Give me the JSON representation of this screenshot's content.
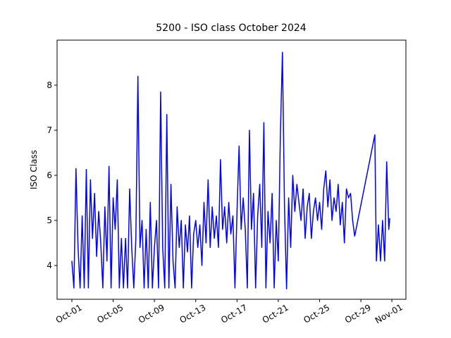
{
  "chart_data": {
    "type": "line",
    "title": "5200 - ISO class October 2024",
    "y_label": "ISO Class",
    "x": [
      1.0,
      1.2,
      1.4,
      1.6,
      1.8,
      2.0,
      2.2,
      2.4,
      2.6,
      2.8,
      3.0,
      3.2,
      3.4,
      3.6,
      3.8,
      4.0,
      4.2,
      4.4,
      4.6,
      4.8,
      5.0,
      5.2,
      5.4,
      5.6,
      5.8,
      6.0,
      6.2,
      6.4,
      6.6,
      6.8,
      7.0,
      7.2,
      7.4,
      7.6,
      7.8,
      8.0,
      8.2,
      8.4,
      8.6,
      8.8,
      9.0,
      9.2,
      9.4,
      9.6,
      9.8,
      10.0,
      10.2,
      10.4,
      10.6,
      10.8,
      11.0,
      11.2,
      11.4,
      11.6,
      11.8,
      12.0,
      12.2,
      12.4,
      12.6,
      12.8,
      13.0,
      13.2,
      13.4,
      13.6,
      13.8,
      14.0,
      14.2,
      14.4,
      14.6,
      14.8,
      15.0,
      15.2,
      15.4,
      15.6,
      15.8,
      16.0,
      16.2,
      16.4,
      16.6,
      16.8,
      17.0,
      17.2,
      17.4,
      17.6,
      17.8,
      18.0,
      18.2,
      18.4,
      18.6,
      18.8,
      19.0,
      19.2,
      19.4,
      19.6,
      19.8,
      20.0,
      20.2,
      20.4,
      20.6,
      20.8,
      21.0,
      21.2,
      21.4,
      21.6,
      21.8,
      22.0,
      22.2,
      22.4,
      22.6,
      22.8,
      23.0,
      23.2,
      23.4,
      23.6,
      23.8,
      24.0,
      24.2,
      24.4,
      24.6,
      24.8,
      25.0,
      25.2,
      25.4,
      25.6,
      25.8,
      26.0,
      26.2,
      26.4,
      26.6,
      26.8,
      27.0,
      27.2,
      27.4,
      27.6,
      27.8,
      28.0,
      28.2,
      28.4,
      30.35,
      30.5,
      30.7,
      30.9,
      31.1,
      31.3,
      31.5,
      31.7,
      31.8
    ],
    "series": [
      {
        "color": "#0000ff",
        "values": [
          4.1,
          3.5,
          6.15,
          4.4,
          3.5,
          5.1,
          3.5,
          6.13,
          3.5,
          5.9,
          4.6,
          5.6,
          4.2,
          5.2,
          4.5,
          3.5,
          5.3,
          4.1,
          6.2,
          3.5,
          5.5,
          4.8,
          5.9,
          3.5,
          4.6,
          3.5,
          4.6,
          3.5,
          5.7,
          4.4,
          3.5,
          4.6,
          8.2,
          4.4,
          5.0,
          3.5,
          4.8,
          3.5,
          5.4,
          3.5,
          4.4,
          5.0,
          3.5,
          7.85,
          4.4,
          3.5,
          7.35,
          3.5,
          5.8,
          4.1,
          3.5,
          5.3,
          4.4,
          5.0,
          3.5,
          4.9,
          4.3,
          5.1,
          3.5,
          4.7,
          5.0,
          4.4,
          4.9,
          4.0,
          5.4,
          4.5,
          5.9,
          4.4,
          5.3,
          4.6,
          5.1,
          4.4,
          6.35,
          4.8,
          5.3,
          4.5,
          5.4,
          4.7,
          5.1,
          3.5,
          5.2,
          6.65,
          4.8,
          5.5,
          4.8,
          3.5,
          7.0,
          4.8,
          5.6,
          3.5,
          5.1,
          5.8,
          4.4,
          7.17,
          3.5,
          5.2,
          4.5,
          5.6,
          3.5,
          5.0,
          4.1,
          6.9,
          8.73,
          5.3,
          3.48,
          5.5,
          4.4,
          6.0,
          5.2,
          5.8,
          5.4,
          5.0,
          5.7,
          4.6,
          5.3,
          5.6,
          4.6,
          5.2,
          5.5,
          5.0,
          5.4,
          4.8,
          5.7,
          6.1,
          5.3,
          5.9,
          5.0,
          5.5,
          5.2,
          5.8,
          4.9,
          5.4,
          4.5,
          5.7,
          5.5,
          5.6,
          5.0,
          4.65,
          6.9,
          4.1,
          4.9,
          4.1,
          5.0,
          4.1,
          6.3,
          4.8,
          5.05
        ]
      }
    ],
    "xlim": [
      -0.43,
      33.36
    ],
    "ylim": [
      3.25,
      9.0
    ],
    "xticks": [
      {
        "value": 1,
        "label": "Oct-01"
      },
      {
        "value": 5,
        "label": "Oct-05"
      },
      {
        "value": 9,
        "label": "Oct-09"
      },
      {
        "value": 13,
        "label": "Oct-13"
      },
      {
        "value": 17,
        "label": "Oct-17"
      },
      {
        "value": 21,
        "label": "Oct-21"
      },
      {
        "value": 25,
        "label": "Oct-25"
      },
      {
        "value": 29,
        "label": "Oct-29"
      },
      {
        "value": 32,
        "label": "Nov-01"
      }
    ],
    "yticks": [
      4,
      5,
      6,
      7,
      8
    ]
  }
}
